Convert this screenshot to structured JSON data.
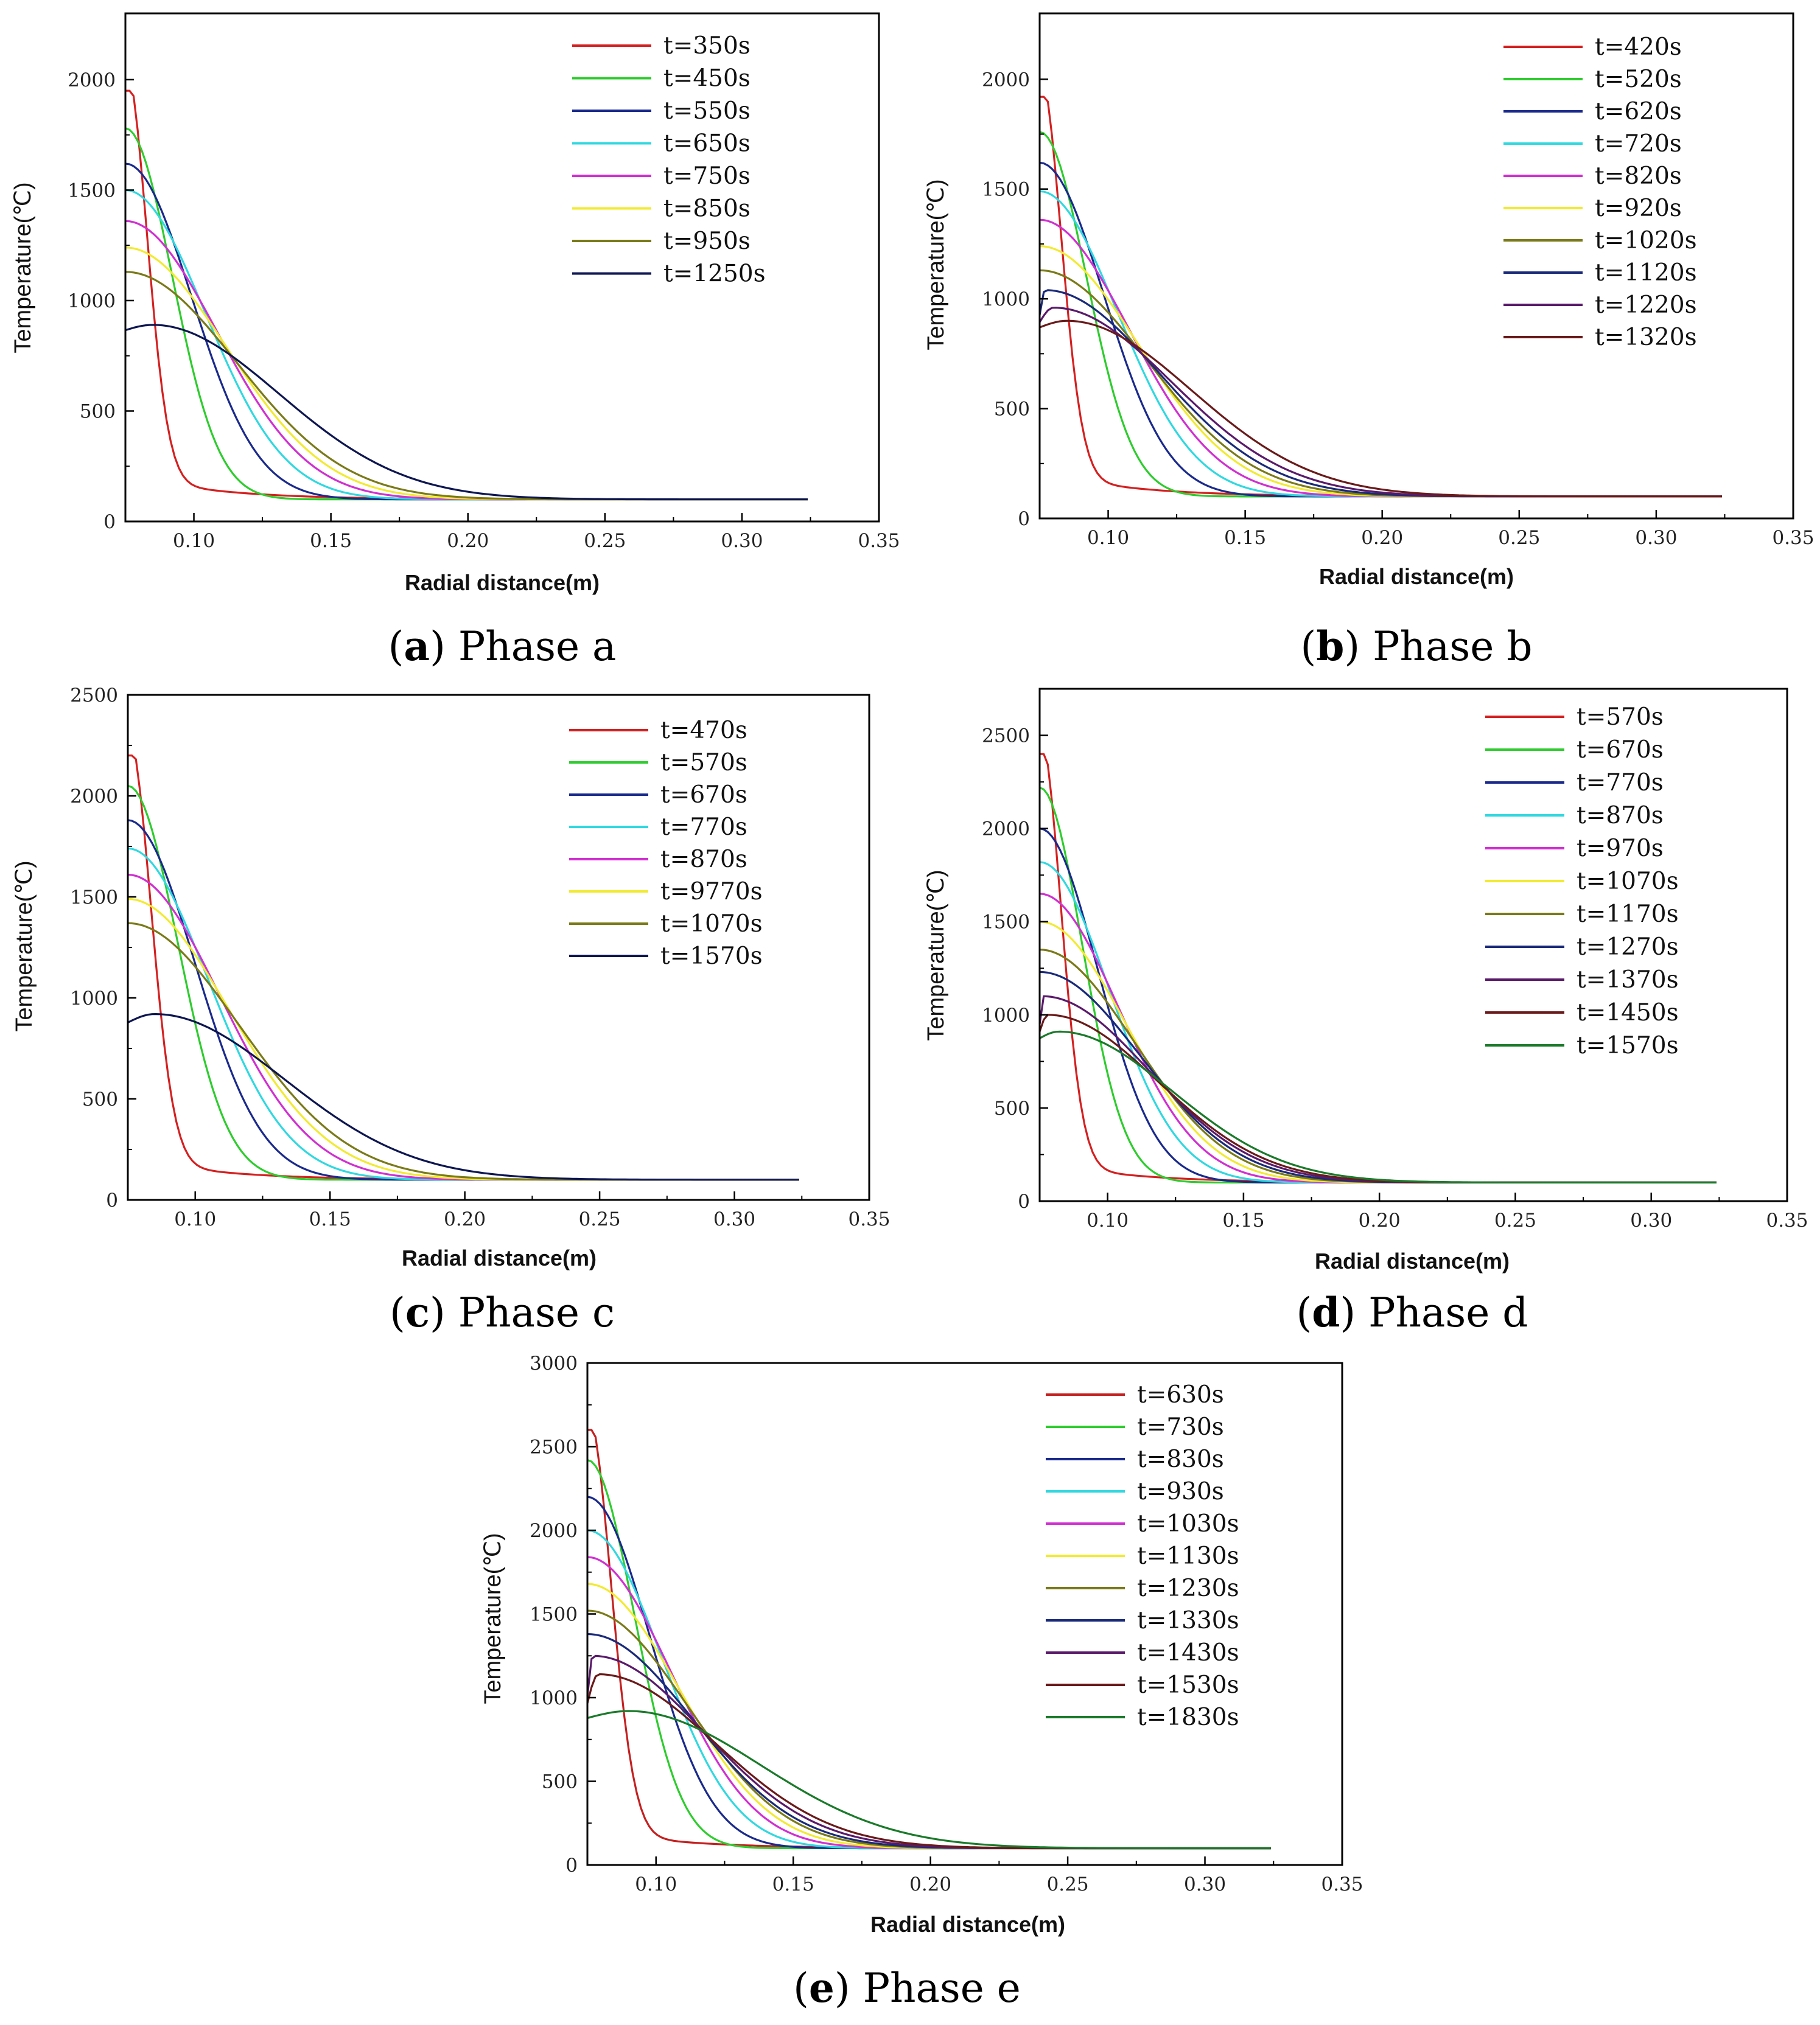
{
  "chart_data": [
    {
      "panel": "a",
      "type": "line",
      "caption_letter": "a",
      "caption_text": "Phase a",
      "xlabel": "Radial distance(m)",
      "ylabel": "Temperature(℃)",
      "xlim": [
        0.075,
        0.35
      ],
      "ylim": [
        0,
        2300
      ],
      "x_ticks": [
        0.1,
        0.15,
        0.2,
        0.25,
        0.3,
        0.35
      ],
      "x_tick_labels": [
        "0.10",
        "0.15",
        "0.20",
        "0.25",
        "0.30",
        "0.35"
      ],
      "y_ticks": [
        0,
        500,
        1000,
        1500,
        2000
      ],
      "y_tick_labels": [
        "0",
        "500",
        "1000",
        "1500",
        "2000"
      ],
      "series": [
        {
          "name": "t=350s",
          "color": "#d42020",
          "peak": 1950,
          "peak_x": 0.075,
          "width": 0.011
        },
        {
          "name": "t=450s",
          "color": "#2ecc2e",
          "peak": 1780,
          "peak_x": 0.075,
          "width": 0.024
        },
        {
          "name": "t=550s",
          "color": "#1a2a8c",
          "peak": 1620,
          "peak_x": 0.075,
          "width": 0.034
        },
        {
          "name": "t=650s",
          "color": "#30d8e0",
          "peak": 1500,
          "peak_x": 0.075,
          "width": 0.041
        },
        {
          "name": "t=750s",
          "color": "#d030d0",
          "peak": 1360,
          "peak_x": 0.075,
          "width": 0.047
        },
        {
          "name": "t=850s",
          "color": "#f2ea30",
          "peak": 1240,
          "peak_x": 0.075,
          "width": 0.052
        },
        {
          "name": "t=950s",
          "color": "#7a7a18",
          "peak": 1130,
          "peak_x": 0.075,
          "width": 0.057
        },
        {
          "name": "t=1250s",
          "color": "#0d1650",
          "peak": 890,
          "peak_x": 0.085,
          "width": 0.065
        }
      ]
    },
    {
      "panel": "b",
      "type": "line",
      "caption_letter": "b",
      "caption_text": "Phase b",
      "xlabel": "Radial distance(m)",
      "ylabel": "Temperature(℃)",
      "xlim": [
        0.075,
        0.35
      ],
      "ylim": [
        0,
        2300
      ],
      "x_ticks": [
        0.1,
        0.15,
        0.2,
        0.25,
        0.3,
        0.35
      ],
      "x_tick_labels": [
        "0.10",
        "0.15",
        "0.20",
        "0.25",
        "0.30",
        "0.35"
      ],
      "y_ticks": [
        0,
        500,
        1000,
        1500,
        2000
      ],
      "y_tick_labels": [
        "0",
        "500",
        "1000",
        "1500",
        "2000"
      ],
      "series": [
        {
          "name": "t=420s",
          "color": "#d42020",
          "peak": 1920,
          "peak_x": 0.075,
          "width": 0.011
        },
        {
          "name": "t=520s",
          "color": "#2ecc2e",
          "peak": 1760,
          "peak_x": 0.075,
          "width": 0.024
        },
        {
          "name": "t=620s",
          "color": "#1a2a8c",
          "peak": 1620,
          "peak_x": 0.075,
          "width": 0.033
        },
        {
          "name": "t=720s",
          "color": "#30d8e0",
          "peak": 1490,
          "peak_x": 0.075,
          "width": 0.04
        },
        {
          "name": "t=820s",
          "color": "#d030d0",
          "peak": 1360,
          "peak_x": 0.075,
          "width": 0.046
        },
        {
          "name": "t=920s",
          "color": "#f2ea30",
          "peak": 1240,
          "peak_x": 0.075,
          "width": 0.051
        },
        {
          "name": "t=1020s",
          "color": "#7a7a18",
          "peak": 1130,
          "peak_x": 0.075,
          "width": 0.055
        },
        {
          "name": "t=1120s",
          "color": "#1a2a7a",
          "peak": 1040,
          "peak_x": 0.077,
          "width": 0.058
        },
        {
          "name": "t=1220s",
          "color": "#5a1a6a",
          "peak": 960,
          "peak_x": 0.08,
          "width": 0.061
        },
        {
          "name": "t=1320s",
          "color": "#6a1a1a",
          "peak": 900,
          "peak_x": 0.085,
          "width": 0.064
        }
      ]
    },
    {
      "panel": "c",
      "type": "line",
      "caption_letter": "c",
      "caption_text": "Phase c",
      "xlabel": "Radial distance(m)",
      "ylabel": "Temperature(℃)",
      "xlim": [
        0.075,
        0.35
      ],
      "ylim": [
        0,
        2500
      ],
      "x_ticks": [
        0.1,
        0.15,
        0.2,
        0.25,
        0.3,
        0.35
      ],
      "x_tick_labels": [
        "0.10",
        "0.15",
        "0.20",
        "0.25",
        "0.30",
        "0.35"
      ],
      "y_ticks": [
        0,
        500,
        1000,
        1500,
        2000,
        2500
      ],
      "y_tick_labels": [
        "0",
        "500",
        "1000",
        "1500",
        "2000",
        "2500"
      ],
      "series": [
        {
          "name": "t=470s",
          "color": "#d42020",
          "peak": 2200,
          "peak_x": 0.075,
          "width": 0.012
        },
        {
          "name": "t=570s",
          "color": "#2ecc2e",
          "peak": 2050,
          "peak_x": 0.075,
          "width": 0.026
        },
        {
          "name": "t=670s",
          "color": "#1a2a8c",
          "peak": 1880,
          "peak_x": 0.075,
          "width": 0.035
        },
        {
          "name": "t=770s",
          "color": "#30d8e0",
          "peak": 1740,
          "peak_x": 0.075,
          "width": 0.042
        },
        {
          "name": "t=870s",
          "color": "#d030d0",
          "peak": 1610,
          "peak_x": 0.075,
          "width": 0.048
        },
        {
          "name": "t=9770s",
          "color": "#f2ea30",
          "peak": 1490,
          "peak_x": 0.075,
          "width": 0.053
        },
        {
          "name": "t=1070s",
          "color": "#7a7a18",
          "peak": 1370,
          "peak_x": 0.075,
          "width": 0.058
        },
        {
          "name": "t=1570s",
          "color": "#0d1650",
          "peak": 920,
          "peak_x": 0.085,
          "width": 0.068
        }
      ]
    },
    {
      "panel": "d",
      "type": "line",
      "caption_letter": "d",
      "caption_text": "Phase d",
      "xlabel": "Radial distance(m)",
      "ylabel": "Temperature(℃)",
      "xlim": [
        0.075,
        0.35
      ],
      "ylim": [
        0,
        2750
      ],
      "x_ticks": [
        0.1,
        0.15,
        0.2,
        0.25,
        0.3,
        0.35
      ],
      "x_tick_labels": [
        "0.10",
        "0.15",
        "0.20",
        "0.25",
        "0.30",
        "0.35"
      ],
      "y_ticks": [
        0,
        500,
        1000,
        1500,
        2000,
        2500
      ],
      "y_tick_labels": [
        "0",
        "500",
        "1000",
        "1500",
        "2000",
        "2500"
      ],
      "series": [
        {
          "name": "t=570s",
          "color": "#d42020",
          "peak": 2400,
          "peak_x": 0.075,
          "width": 0.011
        },
        {
          "name": "t=670s",
          "color": "#2ecc2e",
          "peak": 2220,
          "peak_x": 0.075,
          "width": 0.022
        },
        {
          "name": "t=770s",
          "color": "#1a2a8c",
          "peak": 2000,
          "peak_x": 0.075,
          "width": 0.03
        },
        {
          "name": "t=870s",
          "color": "#30d8e0",
          "peak": 1820,
          "peak_x": 0.075,
          "width": 0.036
        },
        {
          "name": "t=970s",
          "color": "#d030d0",
          "peak": 1650,
          "peak_x": 0.075,
          "width": 0.041
        },
        {
          "name": "t=1070s",
          "color": "#f2ea30",
          "peak": 1500,
          "peak_x": 0.075,
          "width": 0.045
        },
        {
          "name": "t=1170s",
          "color": "#7a7a18",
          "peak": 1350,
          "peak_x": 0.075,
          "width": 0.049
        },
        {
          "name": "t=1270s",
          "color": "#1a2a7a",
          "peak": 1230,
          "peak_x": 0.075,
          "width": 0.052
        },
        {
          "name": "t=1370s",
          "color": "#5a1a6a",
          "peak": 1100,
          "peak_x": 0.076,
          "width": 0.055
        },
        {
          "name": "t=1450s",
          "color": "#6a1a1a",
          "peak": 1000,
          "peak_x": 0.078,
          "width": 0.057
        },
        {
          "name": "t=1570s",
          "color": "#1a7a2a",
          "peak": 910,
          "peak_x": 0.082,
          "width": 0.059
        }
      ]
    },
    {
      "panel": "e",
      "type": "line",
      "caption_letter": "e",
      "caption_text": "Phase e",
      "xlabel": "Radial distance(m)",
      "ylabel": "Temperature(℃)",
      "xlim": [
        0.075,
        0.35
      ],
      "ylim": [
        0,
        3000
      ],
      "x_ticks": [
        0.1,
        0.15,
        0.2,
        0.25,
        0.3,
        0.35
      ],
      "x_tick_labels": [
        "0.10",
        "0.15",
        "0.20",
        "0.25",
        "0.30",
        "0.35"
      ],
      "y_ticks": [
        0,
        500,
        1000,
        1500,
        2000,
        2500,
        3000
      ],
      "y_tick_labels": [
        "0",
        "500",
        "1000",
        "1500",
        "2000",
        "2500",
        "3000"
      ],
      "series": [
        {
          "name": "t=630s",
          "color": "#c42020",
          "peak": 2600,
          "peak_x": 0.075,
          "width": 0.012
        },
        {
          "name": "t=730s",
          "color": "#2ecc2e",
          "peak": 2420,
          "peak_x": 0.075,
          "width": 0.024
        },
        {
          "name": "t=830s",
          "color": "#1a2a8c",
          "peak": 2200,
          "peak_x": 0.075,
          "width": 0.032
        },
        {
          "name": "t=930s",
          "color": "#30d8e0",
          "peak": 2000,
          "peak_x": 0.075,
          "width": 0.038
        },
        {
          "name": "t=1030s",
          "color": "#d030d0",
          "peak": 1840,
          "peak_x": 0.075,
          "width": 0.043
        },
        {
          "name": "t=1130s",
          "color": "#f2ea30",
          "peak": 1680,
          "peak_x": 0.075,
          "width": 0.047
        },
        {
          "name": "t=1230s",
          "color": "#7a7a18",
          "peak": 1520,
          "peak_x": 0.075,
          "width": 0.051
        },
        {
          "name": "t=1330s",
          "color": "#1a2a7a",
          "peak": 1380,
          "peak_x": 0.075,
          "width": 0.054
        },
        {
          "name": "t=1430s",
          "color": "#5a1a6a",
          "peak": 1250,
          "peak_x": 0.077,
          "width": 0.057
        },
        {
          "name": "t=1530s",
          "color": "#6a1a1a",
          "peak": 1140,
          "peak_x": 0.079,
          "width": 0.06
        },
        {
          "name": "t=1830s",
          "color": "#1a7a2a",
          "peak": 920,
          "peak_x": 0.09,
          "width": 0.068
        }
      ]
    }
  ],
  "ambient_temperature": 100,
  "x_end": 0.325
}
